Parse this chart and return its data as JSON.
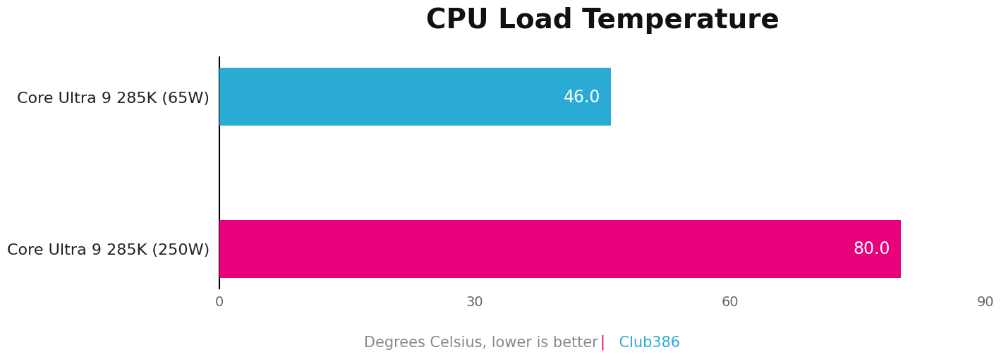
{
  "title": "CPU Load Temperature",
  "categories": [
    "Core Ultra 9 285K (250W)",
    "Core Ultra 9 285K (65W)"
  ],
  "values": [
    80.0,
    46.0
  ],
  "bar_colors": [
    "#E8007D",
    "#29ABD4"
  ],
  "value_labels": [
    "80.0",
    "46.0"
  ],
  "xlim": [
    0,
    90
  ],
  "xticks": [
    0,
    30,
    60,
    90
  ],
  "xlabel_text": "Degrees Celsius, lower is better ",
  "xlabel_separator": "|",
  "xlabel_separator_color": "#E8007D",
  "xlabel_brand": " Club386",
  "xlabel_brand_color": "#29ABD4",
  "xlabel_text_color": "#888888",
  "title_fontsize": 28,
  "tick_fontsize": 14,
  "label_fontsize": 15,
  "value_fontsize": 17,
  "bar_label_color": "#ffffff",
  "category_fontsize": 16,
  "bar_height": 0.38,
  "background_color": "#ffffff",
  "spine_color": "#000000",
  "tick_color": "#666666"
}
